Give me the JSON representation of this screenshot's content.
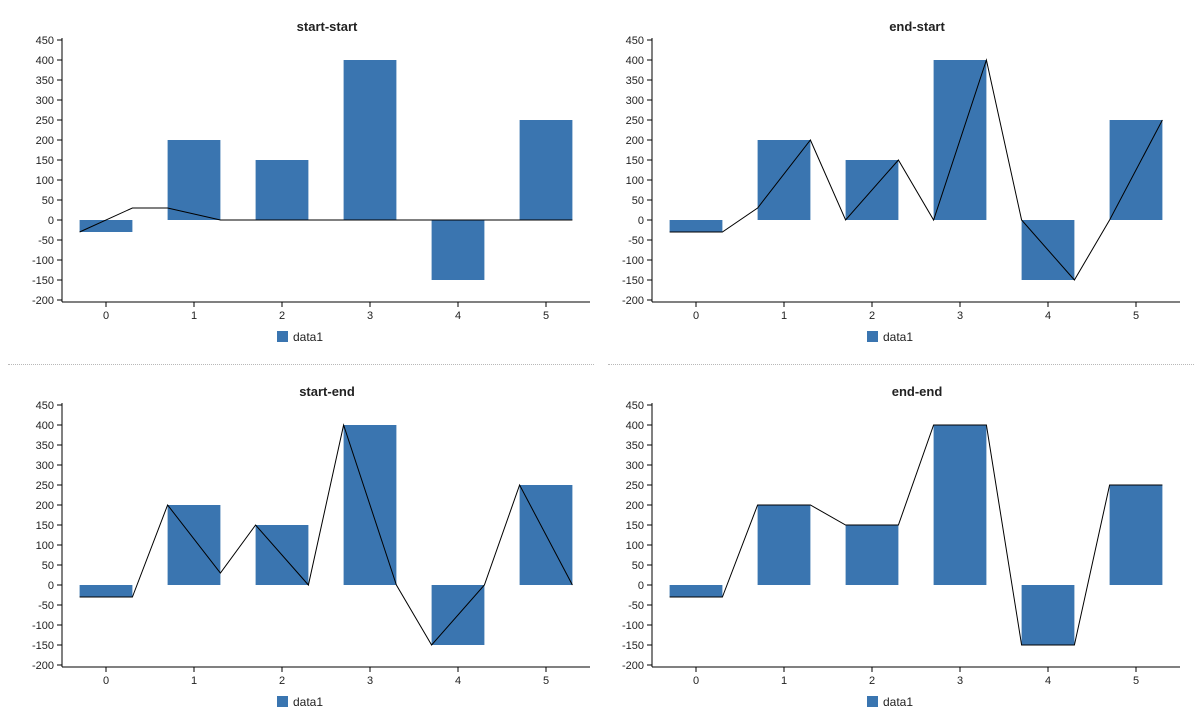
{
  "chart_data": [
    {
      "type": "bar",
      "title": "start-start",
      "categories": [
        "0",
        "1",
        "2",
        "3",
        "4",
        "5"
      ],
      "series": [
        {
          "name": "data1",
          "values": [
            -30,
            200,
            150,
            400,
            -150,
            250
          ]
        }
      ],
      "connector_line": [
        -30,
        30,
        30,
        0,
        0,
        0,
        0,
        0,
        0,
        0,
        0,
        0
      ],
      "ylim": [
        -200,
        450
      ],
      "yticks": [
        -200,
        -150,
        -100,
        -50,
        0,
        50,
        100,
        150,
        200,
        250,
        300,
        350,
        400,
        450
      ],
      "legend": "bottom-center",
      "color": "#3a75b0",
      "grid": false
    },
    {
      "type": "bar",
      "title": "end-start",
      "categories": [
        "0",
        "1",
        "2",
        "3",
        "4",
        "5"
      ],
      "series": [
        {
          "name": "data1",
          "values": [
            -30,
            200,
            150,
            400,
            -150,
            250
          ]
        }
      ],
      "connector_line": [
        -30,
        -30,
        30,
        200,
        0,
        150,
        0,
        400,
        0,
        -150,
        0,
        250
      ],
      "ylim": [
        -200,
        450
      ],
      "yticks": [
        -200,
        -150,
        -100,
        -50,
        0,
        50,
        100,
        150,
        200,
        250,
        300,
        350,
        400,
        450
      ],
      "legend": "bottom-center",
      "color": "#3a75b0",
      "grid": false
    },
    {
      "type": "bar",
      "title": "start-end",
      "categories": [
        "0",
        "1",
        "2",
        "3",
        "4",
        "5"
      ],
      "series": [
        {
          "name": "data1",
          "values": [
            -30,
            200,
            150,
            400,
            -150,
            250
          ]
        }
      ],
      "connector_line": [
        -30,
        -30,
        200,
        30,
        150,
        0,
        400,
        0,
        -150,
        0,
        250,
        0
      ],
      "ylim": [
        -200,
        450
      ],
      "yticks": [
        -200,
        -150,
        -100,
        -50,
        0,
        50,
        100,
        150,
        200,
        250,
        300,
        350,
        400,
        450
      ],
      "legend": "bottom-center",
      "color": "#3a75b0",
      "grid": false
    },
    {
      "type": "bar",
      "title": "end-end",
      "categories": [
        "0",
        "1",
        "2",
        "3",
        "4",
        "5"
      ],
      "series": [
        {
          "name": "data1",
          "values": [
            -30,
            200,
            150,
            400,
            -150,
            250
          ]
        }
      ],
      "connector_line": [
        -30,
        -30,
        200,
        200,
        150,
        150,
        400,
        400,
        -150,
        -150,
        250,
        250
      ],
      "ylim": [
        -200,
        450
      ],
      "yticks": [
        -200,
        -150,
        -100,
        -50,
        0,
        50,
        100,
        150,
        200,
        250,
        300,
        350,
        400,
        450
      ],
      "legend": "bottom-center",
      "color": "#3a75b0",
      "grid": false
    }
  ]
}
